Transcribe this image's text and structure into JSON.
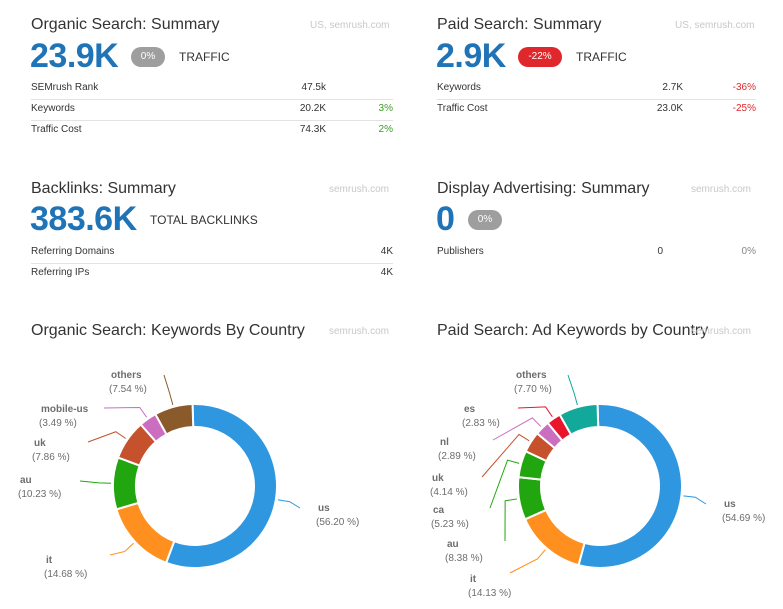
{
  "organic_summary": {
    "title": "Organic Search: Summary",
    "source": "US, semrush.com",
    "traffic_value": "23.9K",
    "traffic_change": "0%",
    "traffic_label": "TRAFFIC",
    "rows": [
      {
        "label": "SEMrush Rank",
        "value": "47.5k",
        "change": ""
      },
      {
        "label": "Keywords",
        "value": "20.2K",
        "change": "3%"
      },
      {
        "label": "Traffic Cost",
        "value": "74.3K",
        "change": "2%"
      }
    ]
  },
  "paid_summary": {
    "title": "Paid Search: Summary",
    "source": "US, semrush.com",
    "traffic_value": "2.9K",
    "traffic_change": "-22%",
    "traffic_label": "TRAFFIC",
    "rows": [
      {
        "label": "Keywords",
        "value": "2.7K",
        "change": "-36%"
      },
      {
        "label": "Traffic Cost",
        "value": "23.0K",
        "change": "-25%"
      }
    ]
  },
  "backlinks_summary": {
    "title": "Backlinks: Summary",
    "source": "semrush.com",
    "total_value": "383.6K",
    "total_label": "TOTAL BACKLINKS",
    "rows": [
      {
        "label": "Referring Domains",
        "value": "4K"
      },
      {
        "label": "Referring IPs",
        "value": "4K"
      }
    ]
  },
  "display_summary": {
    "title": "Display Advertising: Summary",
    "source": "semrush.com",
    "value": "0",
    "change": "0%",
    "rows": [
      {
        "label": "Publishers",
        "value": "0",
        "change": "0%"
      }
    ]
  },
  "colors": {
    "us": "#2f96e0",
    "it": "#ff8f1f",
    "au": "#22a60f",
    "uk": "#c5522d",
    "mobile-us": "#cc6ec0",
    "others": "#8b5a2b",
    "ca": "#22a60f",
    "nl": "#cc6ec0",
    "es": "#e8152b",
    "paid_others": "#12a99a",
    "accent": "#1f73b7"
  },
  "chart_data": [
    {
      "type": "pie",
      "title": "Organic Search: Keywords By Country",
      "source": "semrush.com",
      "slices": [
        {
          "name": "us",
          "value": 56.2,
          "label": "(56.20 %)"
        },
        {
          "name": "it",
          "value": 14.68,
          "label": "(14.68 %)"
        },
        {
          "name": "au",
          "value": 10.23,
          "label": "(10.23 %)"
        },
        {
          "name": "uk",
          "value": 7.86,
          "label": "(7.86 %)"
        },
        {
          "name": "mobile-us",
          "value": 3.49,
          "label": "(3.49 %)"
        },
        {
          "name": "others",
          "value": 7.54,
          "label": "(7.54 %)"
        }
      ]
    },
    {
      "type": "pie",
      "title": "Paid Search: Ad Keywords by Country",
      "source": "semrush.com",
      "slices": [
        {
          "name": "us",
          "value": 54.69,
          "label": "(54.69 %)"
        },
        {
          "name": "it",
          "value": 14.13,
          "label": "(14.13 %)"
        },
        {
          "name": "au",
          "value": 8.38,
          "label": "(8.38 %)"
        },
        {
          "name": "ca",
          "value": 5.23,
          "label": "(5.23 %)"
        },
        {
          "name": "uk",
          "value": 4.14,
          "label": "(4.14 %)"
        },
        {
          "name": "nl",
          "value": 2.89,
          "label": "(2.89 %)"
        },
        {
          "name": "es",
          "value": 2.83,
          "label": "(2.83 %)"
        },
        {
          "name": "others",
          "value": 7.7,
          "label": "(7.70 %)"
        }
      ]
    }
  ]
}
